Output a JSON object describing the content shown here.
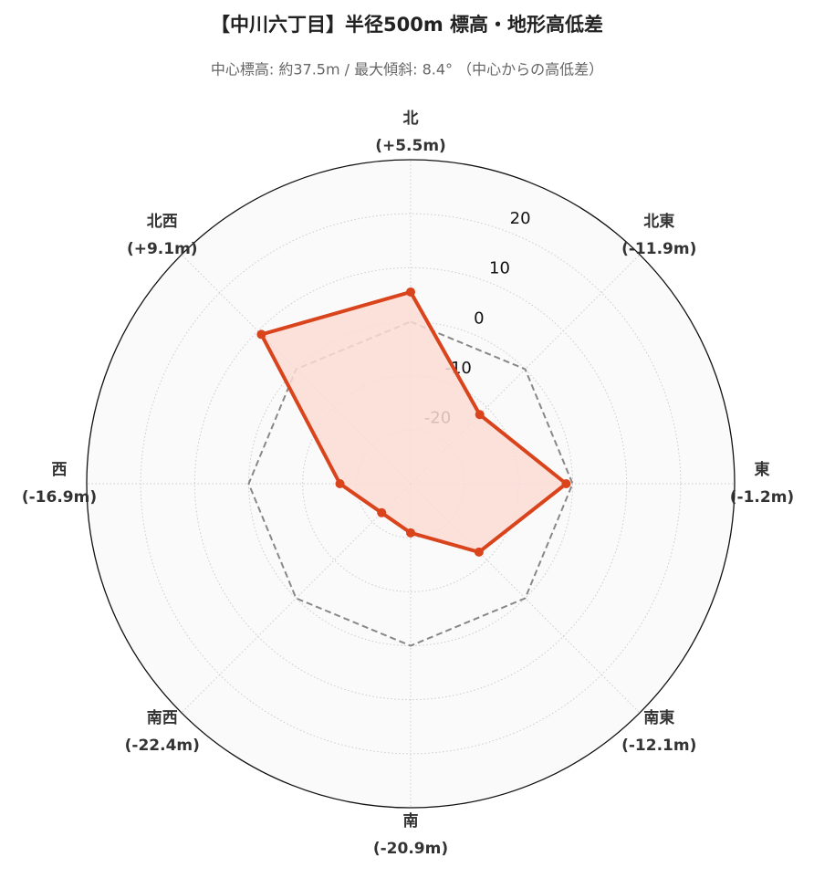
{
  "chart_data": {
    "type": "radar",
    "title": "【中川六丁目】半径500m 標高・地形高低差",
    "subtitle": "中心標高: 約37.5m / 最大傾斜: 8.4° （中心からの高低差）",
    "categories": [
      "北",
      "北東",
      "東",
      "南東",
      "南",
      "南西",
      "西",
      "北西"
    ],
    "values": [
      5.5,
      -11.9,
      -1.2,
      -12.1,
      -20.9,
      -22.4,
      -16.9,
      9.1
    ],
    "value_labels": [
      "(+5.5m)",
      "(-11.9m)",
      "(-1.2m)",
      "(-12.1m)",
      "(-20.9m)",
      "(-22.4m)",
      "(-16.9m)",
      "(+9.1m)"
    ],
    "color": "#d9441c",
    "fill_color": "#fbdcd5",
    "reference": 0,
    "ylim": [
      -30,
      30
    ],
    "yticks": [
      -20,
      -10,
      0,
      10,
      20
    ],
    "grid": true
  }
}
